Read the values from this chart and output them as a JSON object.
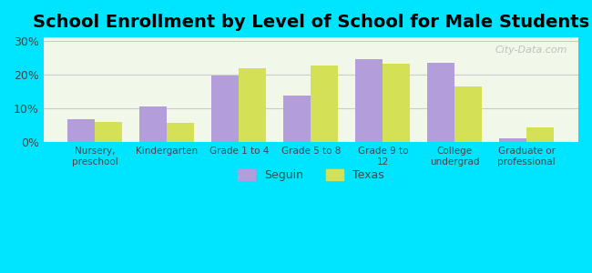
{
  "title": "School Enrollment by Level of School for Male Students",
  "categories": [
    "Nursery,\npreschool",
    "Kindergarten",
    "Grade 1 to 4",
    "Grade 5 to 8",
    "Grade 9 to\n12",
    "College\nundergrad",
    "Graduate or\nprofessional"
  ],
  "seguin_values": [
    6.8,
    10.7,
    19.7,
    13.8,
    24.5,
    23.5,
    1.3
  ],
  "texas_values": [
    6.0,
    5.8,
    21.8,
    22.8,
    23.3,
    16.5,
    4.3
  ],
  "seguin_color": "#b39ddb",
  "texas_color": "#d4e157",
  "background_color": "#00e5ff",
  "plot_bg_color": "#f1f8e9",
  "grid_color": "#cccccc",
  "ylabel_ticks": [
    "0%",
    "10%",
    "20%",
    "30%"
  ],
  "ytick_values": [
    0,
    10,
    20,
    30
  ],
  "ylim": [
    0,
    31
  ],
  "legend_labels": [
    "Seguin",
    "Texas"
  ],
  "title_fontsize": 14,
  "bar_width": 0.38,
  "figure_width": 6.5,
  "figure_height": 3.0
}
